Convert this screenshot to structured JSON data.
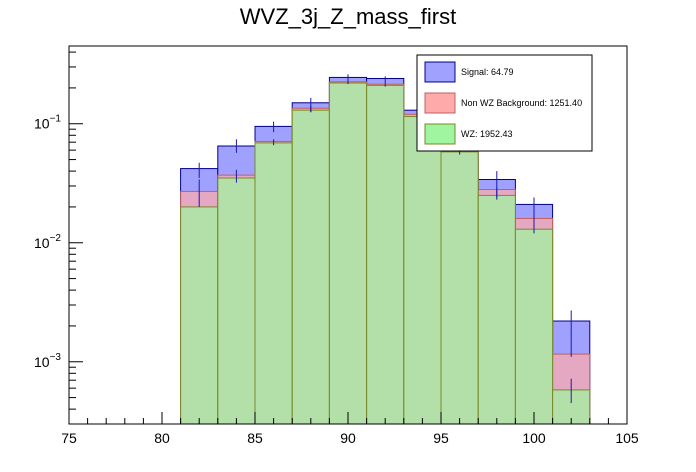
{
  "chart_data": {
    "type": "bar",
    "title": "WVZ_3j_Z_mass_first",
    "xlabel": "",
    "ylabel": "",
    "xlim": [
      75,
      105
    ],
    "ylim": [
      0.0003,
      0.45
    ],
    "yscale": "log",
    "grid": false,
    "legend_placement": "top-right",
    "x_ticks": [
      "75",
      "80",
      "85",
      "90",
      "95",
      "100",
      "105"
    ],
    "y_ticks": [
      {
        "base": "10",
        "exp": "−1",
        "value": 0.1
      },
      {
        "base": "10",
        "exp": "−2",
        "value": 0.01
      },
      {
        "base": "10",
        "exp": "−3",
        "value": 0.001
      }
    ],
    "bin_edges": [
      81,
      83,
      85,
      87,
      89,
      91,
      93,
      95,
      97,
      99,
      101,
      103
    ],
    "series": [
      {
        "name": "WZ: 1952.43",
        "fill": "#a0f5a0",
        "line": "#7a8a2a",
        "values": [
          0.02,
          0.035,
          0.069,
          0.13,
          0.22,
          0.21,
          0.115,
          0.058,
          0.025,
          0.013,
          0.00058
        ]
      },
      {
        "name": "Non WZ Background: 1251.40",
        "fill": "#ffaaaa",
        "line": "#c06060",
        "values": [
          0.027,
          0.037,
          0.071,
          0.135,
          0.225,
          0.215,
          0.12,
          0.061,
          0.028,
          0.016,
          0.00116
        ]
      },
      {
        "name": "Signal: 64.79",
        "fill": "#a0a0ff",
        "line": "#00008b",
        "values": [
          0.042,
          0.065,
          0.095,
          0.15,
          0.245,
          0.24,
          0.13,
          0.085,
          0.034,
          0.021,
          0.0022
        ]
      }
    ],
    "error_bars": [
      {
        "x": 82,
        "y": 0.042,
        "lo": 0.035,
        "hi": 0.047
      },
      {
        "x": 82,
        "y": 0.027,
        "lo": 0.02,
        "hi": 0.034
      },
      {
        "x": 84,
        "y": 0.065,
        "lo": 0.057,
        "hi": 0.074
      },
      {
        "x": 84,
        "y": 0.036,
        "lo": 0.032,
        "hi": 0.041
      },
      {
        "x": 86,
        "y": 0.095,
        "lo": 0.085,
        "hi": 0.104
      },
      {
        "x": 86,
        "y": 0.07,
        "lo": 0.066,
        "hi": 0.074
      },
      {
        "x": 88,
        "y": 0.145,
        "lo": 0.125,
        "hi": 0.165
      },
      {
        "x": 88,
        "y": 0.133,
        "lo": 0.125,
        "hi": 0.142
      },
      {
        "x": 90,
        "y": 0.235,
        "lo": 0.215,
        "hi": 0.26
      },
      {
        "x": 92,
        "y": 0.228,
        "lo": 0.205,
        "hi": 0.25
      },
      {
        "x": 94,
        "y": 0.125,
        "lo": 0.113,
        "hi": 0.136
      },
      {
        "x": 96,
        "y": 0.06,
        "lo": 0.055,
        "hi": 0.066
      },
      {
        "x": 98,
        "y": 0.031,
        "lo": 0.024,
        "hi": 0.04
      },
      {
        "x": 98,
        "y": 0.026,
        "lo": 0.023,
        "hi": 0.029
      },
      {
        "x": 100,
        "y": 0.018,
        "lo": 0.013,
        "hi": 0.024
      },
      {
        "x": 100,
        "y": 0.0145,
        "lo": 0.012,
        "hi": 0.0165
      },
      {
        "x": 102,
        "y": 0.0016,
        "lo": 0.0011,
        "hi": 0.0027
      },
      {
        "x": 102,
        "y": 0.00058,
        "lo": 0.00045,
        "hi": 0.00072
      }
    ]
  }
}
